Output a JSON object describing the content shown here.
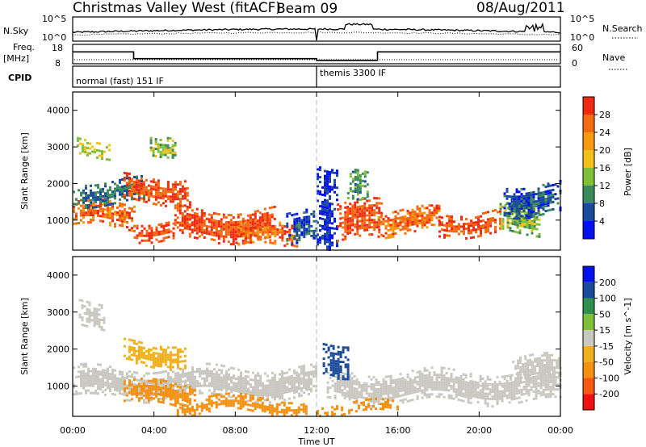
{
  "header": {
    "station": "Christmas Valley West (fitACF)",
    "beam": "Beam 09",
    "date": "08/Aug/2011"
  },
  "summary_panels": {
    "nsky_label": "N.Sky",
    "nsky_ticks": [
      "10^5",
      "10^0"
    ],
    "nsky_right_ticks": [
      "10^5",
      "10^0"
    ],
    "nsearch_label": "N.Search",
    "freq_label": "Freq.",
    "freq_unit": "[MHz]",
    "freq_ticks": [
      "18",
      "8"
    ],
    "nave_ticks": [
      "60",
      "0"
    ],
    "nave_label": "Nave",
    "cpid_label": "CPID",
    "cpid_segments": [
      "normal (fast) 151 IF",
      "themis 3300 IF"
    ]
  },
  "x_axis": {
    "label": "Time UT",
    "ticks": [
      "00:00",
      "04:00",
      "08:00",
      "12:00",
      "16:00",
      "20:00",
      "00:00"
    ]
  },
  "power_panel": {
    "ylabel": "Slant Range [km]",
    "yticks": [
      "1000",
      "2000",
      "3000",
      "4000"
    ],
    "colorbar_label": "Power [dB]",
    "colorbar_ticks": [
      "28",
      "24",
      "20",
      "16",
      "12",
      "8",
      "4"
    ]
  },
  "velocity_panel": {
    "ylabel": "Slant Range [km]",
    "yticks": [
      "1000",
      "2000",
      "3000",
      "4000"
    ],
    "colorbar_label": "Velocity [m s^-1]",
    "colorbar_ticks": [
      "200",
      "100",
      "50",
      "15",
      "-15",
      "-50",
      "-100",
      "-200"
    ]
  },
  "colors": {
    "power_scale": [
      "#0010f0",
      "#1a4a9a",
      "#3c8a5a",
      "#7fbf3a",
      "#f2c018",
      "#f59a10",
      "#f46a10",
      "#f02a10"
    ],
    "velocity_scale": [
      "#f01010",
      "#f45a10",
      "#f59010",
      "#f0b020",
      "#c8c8c0",
      "#7fbf3a",
      "#2f8f4f",
      "#1a4a9a",
      "#0010f0"
    ],
    "ground_scatter": "#c8c8c0"
  },
  "chart_data": {
    "type": "heatmap",
    "x": {
      "unit": "hours UT",
      "range": [
        0,
        24
      ]
    },
    "y": {
      "unit": "slant range km",
      "range": [
        180,
        4500
      ]
    },
    "power_db_range": [
      0,
      32
    ],
    "velocity_range": [
      -240,
      240
    ],
    "cpid_change_hour": 12.0,
    "freq_mhz": [
      {
        "start_hour": 0,
        "end_hour": 3,
        "value": 15
      },
      {
        "start_hour": 3,
        "end_hour": 12,
        "value": 11
      },
      {
        "start_hour": 12,
        "end_hour": 15,
        "value": 10
      },
      {
        "start_hour": 15,
        "end_hour": 24,
        "value": 15
      }
    ],
    "power_regions": [
      {
        "t0": 0.0,
        "t1": 3.0,
        "r0": 800,
        "r1": 1500,
        "db": 26
      },
      {
        "t0": 0.2,
        "t1": 1.8,
        "r0": 2800,
        "r1": 3200,
        "db": 16
      },
      {
        "t0": 0.0,
        "t1": 3.5,
        "r0": 1500,
        "r1": 2100,
        "db": 8
      },
      {
        "t0": 2.5,
        "t1": 5.8,
        "r0": 1500,
        "r1": 2200,
        "db": 28
      },
      {
        "t0": 3.0,
        "t1": 5.0,
        "r0": 500,
        "r1": 1000,
        "db": 28
      },
      {
        "t0": 5.0,
        "t1": 10.0,
        "r0": 500,
        "r1": 1300,
        "db": 28
      },
      {
        "t0": 8.0,
        "t1": 11.0,
        "r0": 300,
        "r1": 900,
        "db": 26
      },
      {
        "t0": 3.8,
        "t1": 5.0,
        "r0": 2800,
        "r1": 3400,
        "db": 14
      },
      {
        "t0": 10.5,
        "t1": 12.0,
        "r0": 300,
        "r1": 1200,
        "db": 6
      },
      {
        "t0": 12.0,
        "t1": 13.0,
        "r0": 300,
        "r1": 2500,
        "db": 4
      },
      {
        "t0": 13.0,
        "t1": 15.2,
        "r0": 500,
        "r1": 1500,
        "db": 28
      },
      {
        "t0": 13.5,
        "t1": 14.5,
        "r0": 1500,
        "r1": 2300,
        "db": 10
      },
      {
        "t0": 15.0,
        "t1": 18.0,
        "r0": 600,
        "r1": 1300,
        "db": 26
      },
      {
        "t0": 18.0,
        "t1": 21.0,
        "r0": 650,
        "r1": 1250,
        "db": 28
      },
      {
        "t0": 21.0,
        "t1": 23.0,
        "r0": 700,
        "r1": 1500,
        "db": 14
      },
      {
        "t0": 21.2,
        "t1": 24.0,
        "r0": 1200,
        "r1": 2000,
        "db": 6
      }
    ],
    "velocity_regions": [
      {
        "t0": 0.0,
        "t1": 12.0,
        "r0": 700,
        "r1": 1500,
        "v": 0
      },
      {
        "t0": 0.3,
        "t1": 1.5,
        "r0": 2600,
        "r1": 3300,
        "v": 0
      },
      {
        "t0": 2.5,
        "t1": 6.0,
        "r0": 500,
        "r1": 1100,
        "v": -60
      },
      {
        "t0": 5.0,
        "t1": 11.5,
        "r0": 250,
        "r1": 700,
        "v": -70
      },
      {
        "t0": 12.5,
        "t1": 24.0,
        "r0": 600,
        "r1": 1400,
        "v": 0
      },
      {
        "t0": 12.3,
        "t1": 13.5,
        "r0": 1300,
        "r1": 2200,
        "v": 180
      },
      {
        "t0": 12.0,
        "t1": 16.0,
        "r0": 250,
        "r1": 550,
        "v": -60
      },
      {
        "t0": 2.5,
        "t1": 5.5,
        "r0": 1600,
        "r1": 2200,
        "v": -30
      },
      {
        "t0": 21.5,
        "t1": 24.0,
        "r0": 1100,
        "r1": 1800,
        "v": 0
      }
    ]
  }
}
